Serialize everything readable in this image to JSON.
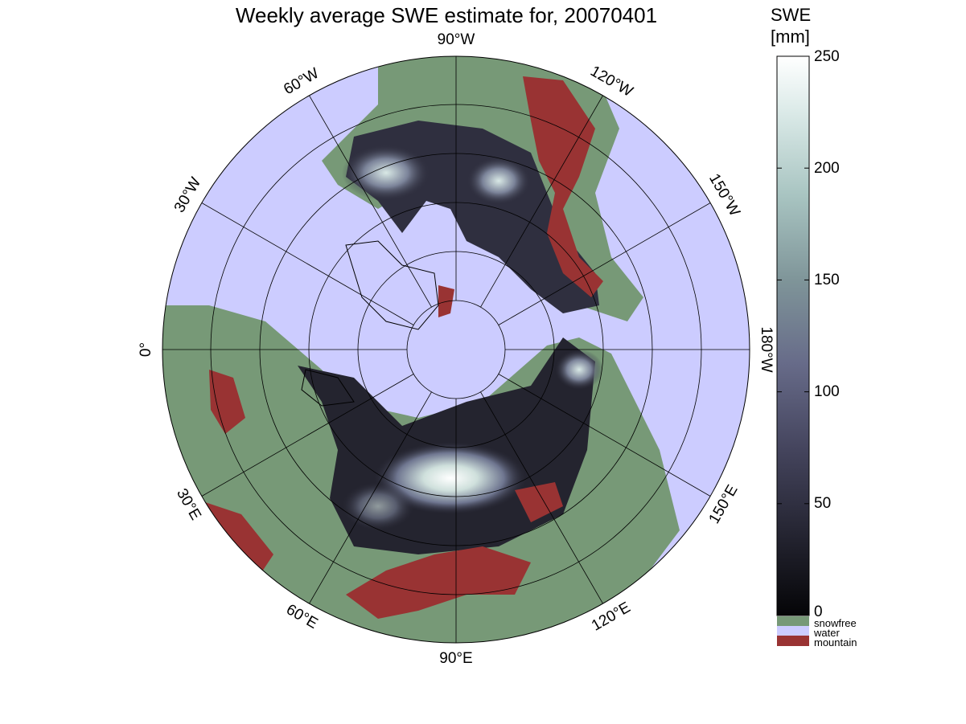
{
  "title": "Weekly average SWE estimate for, 20070401",
  "colorbar": {
    "label_line1": "SWE",
    "label_line2": "[mm]",
    "ticks": [
      "250",
      "200",
      "150",
      "100",
      "50",
      "0"
    ],
    "range": [
      0,
      250
    ],
    "colors": [
      "#0b0b10",
      "#3c3b52",
      "#6c7090",
      "#8fa4a8",
      "#c7dedb",
      "#ffffff"
    ]
  },
  "legend": [
    {
      "label": "snowfree",
      "color": "#779977"
    },
    {
      "label": "water",
      "color": "#ccccff"
    },
    {
      "label": "mountain",
      "color": "#993333"
    }
  ],
  "longitude_labels": [
    {
      "text": "90°W",
      "deg": "90",
      "hemi": "W"
    },
    {
      "text": "120°W",
      "deg": "120",
      "hemi": "W"
    },
    {
      "text": "150°W",
      "deg": "150",
      "hemi": "W"
    },
    {
      "text": "180°W",
      "deg": "180",
      "hemi": "W"
    },
    {
      "text": "150°E",
      "deg": "150",
      "hemi": "E"
    },
    {
      "text": "120°E",
      "deg": "120",
      "hemi": "E"
    },
    {
      "text": "90°E",
      "deg": "90",
      "hemi": "E"
    },
    {
      "text": "60°E",
      "deg": "60",
      "hemi": "E"
    },
    {
      "text": "30°E",
      "deg": "30",
      "hemi": "E"
    },
    {
      "text": "0°",
      "deg": "0",
      "hemi": ""
    },
    {
      "text": "30°W",
      "deg": "30",
      "hemi": "W"
    },
    {
      "text": "60°W",
      "deg": "60",
      "hemi": "W"
    }
  ]
}
